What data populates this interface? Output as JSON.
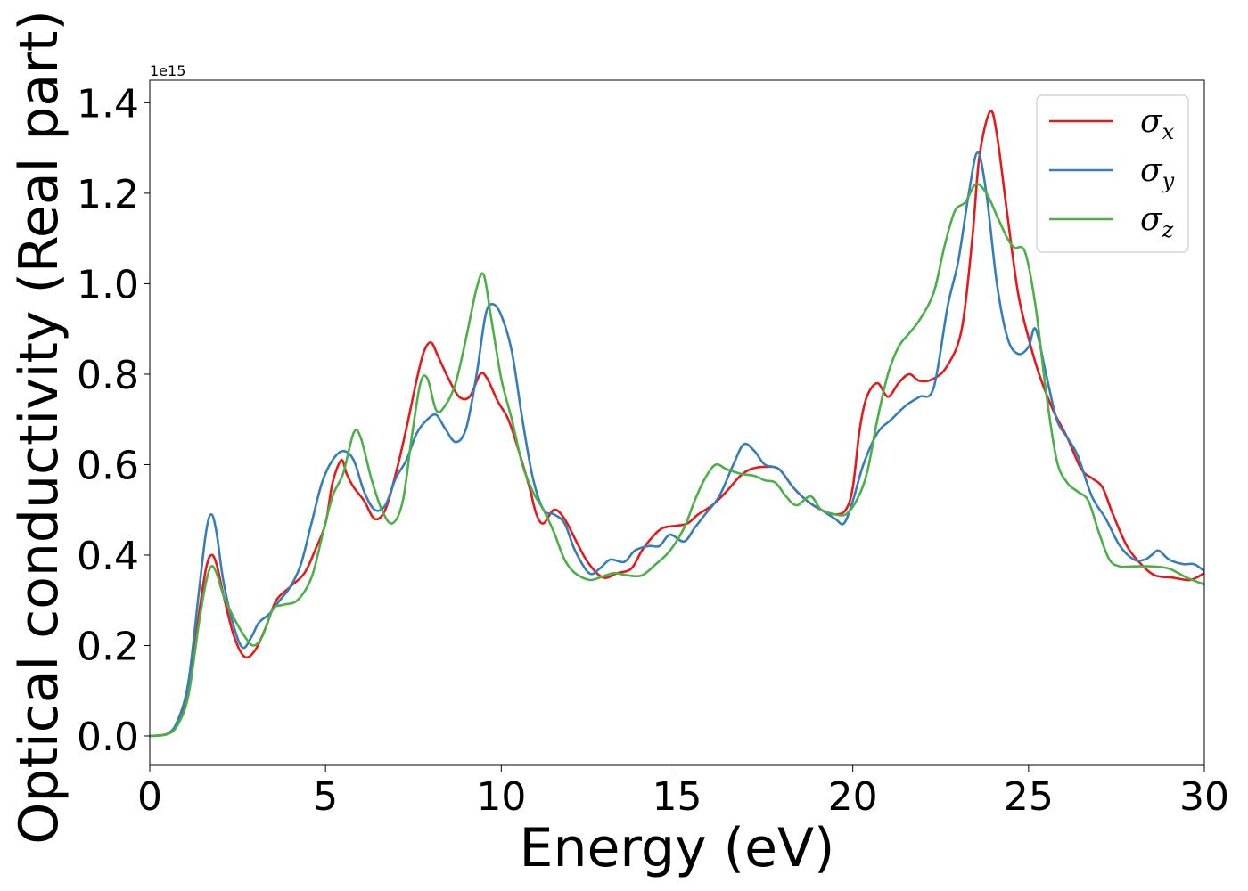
{
  "chart_data": {
    "type": "line",
    "title": "",
    "xlabel": "Energy (eV)",
    "ylabel": "Optical conductivity (Real part)",
    "y_offset_label": "1e15",
    "xlim": [
      0,
      30
    ],
    "ylim": [
      -0.065,
      1.45
    ],
    "x_ticks": [
      0,
      5,
      10,
      15,
      20,
      25,
      30
    ],
    "x_tick_labels": [
      "0",
      "5",
      "10",
      "15",
      "20",
      "25",
      "30"
    ],
    "y_ticks": [
      0.0,
      0.2,
      0.4,
      0.6,
      0.8,
      1.0,
      1.2,
      1.4
    ],
    "y_tick_labels": [
      "0.0",
      "0.2",
      "0.4",
      "0.6",
      "0.8",
      "1.0",
      "1.2",
      "1.4"
    ],
    "grid": false,
    "legend_position": "top-right",
    "series": [
      {
        "name": "σx",
        "symbol": "σ",
        "subscript": "x",
        "color": "#e41a1c",
        "points": [
          [
            0,
            0
          ],
          [
            0.5,
            0.005
          ],
          [
            0.8,
            0.03
          ],
          [
            1.1,
            0.1
          ],
          [
            1.4,
            0.27
          ],
          [
            1.6,
            0.37
          ],
          [
            1.75,
            0.4
          ],
          [
            1.9,
            0.38
          ],
          [
            2.1,
            0.31
          ],
          [
            2.4,
            0.22
          ],
          [
            2.7,
            0.175
          ],
          [
            3.0,
            0.19
          ],
          [
            3.3,
            0.24
          ],
          [
            3.6,
            0.3
          ],
          [
            4.0,
            0.33
          ],
          [
            4.4,
            0.36
          ],
          [
            4.7,
            0.41
          ],
          [
            5.0,
            0.47
          ],
          [
            5.2,
            0.56
          ],
          [
            5.45,
            0.61
          ],
          [
            5.6,
            0.58
          ],
          [
            5.8,
            0.55
          ],
          [
            6.1,
            0.52
          ],
          [
            6.4,
            0.48
          ],
          [
            6.7,
            0.5
          ],
          [
            7.0,
            0.58
          ],
          [
            7.3,
            0.68
          ],
          [
            7.6,
            0.79
          ],
          [
            7.8,
            0.85
          ],
          [
            8.0,
            0.87
          ],
          [
            8.2,
            0.84
          ],
          [
            8.5,
            0.79
          ],
          [
            8.8,
            0.75
          ],
          [
            9.1,
            0.75
          ],
          [
            9.4,
            0.8
          ],
          [
            9.6,
            0.79
          ],
          [
            9.9,
            0.74
          ],
          [
            10.2,
            0.7
          ],
          [
            10.5,
            0.63
          ],
          [
            10.8,
            0.55
          ],
          [
            11.0,
            0.49
          ],
          [
            11.2,
            0.47
          ],
          [
            11.5,
            0.5
          ],
          [
            11.8,
            0.48
          ],
          [
            12.2,
            0.42
          ],
          [
            12.5,
            0.38
          ],
          [
            12.9,
            0.35
          ],
          [
            13.3,
            0.36
          ],
          [
            13.7,
            0.37
          ],
          [
            14.0,
            0.41
          ],
          [
            14.3,
            0.44
          ],
          [
            14.6,
            0.46
          ],
          [
            15.0,
            0.465
          ],
          [
            15.3,
            0.47
          ],
          [
            15.6,
            0.49
          ],
          [
            16.0,
            0.51
          ],
          [
            16.4,
            0.54
          ],
          [
            16.8,
            0.575
          ],
          [
            17.1,
            0.59
          ],
          [
            17.5,
            0.595
          ],
          [
            17.9,
            0.59
          ],
          [
            18.3,
            0.55
          ],
          [
            18.7,
            0.52
          ],
          [
            19.1,
            0.5
          ],
          [
            19.5,
            0.49
          ],
          [
            19.8,
            0.5
          ],
          [
            20.0,
            0.55
          ],
          [
            20.2,
            0.68
          ],
          [
            20.4,
            0.75
          ],
          [
            20.7,
            0.78
          ],
          [
            21.0,
            0.75
          ],
          [
            21.3,
            0.78
          ],
          [
            21.6,
            0.8
          ],
          [
            21.9,
            0.785
          ],
          [
            22.3,
            0.79
          ],
          [
            22.7,
            0.82
          ],
          [
            23.1,
            0.9
          ],
          [
            23.4,
            1.1
          ],
          [
            23.6,
            1.28
          ],
          [
            23.9,
            1.38
          ],
          [
            24.1,
            1.33
          ],
          [
            24.4,
            1.15
          ],
          [
            24.7,
            0.98
          ],
          [
            25.0,
            0.88
          ],
          [
            25.3,
            0.8
          ],
          [
            25.7,
            0.72
          ],
          [
            26.1,
            0.66
          ],
          [
            26.5,
            0.59
          ],
          [
            26.8,
            0.57
          ],
          [
            27.1,
            0.55
          ],
          [
            27.4,
            0.49
          ],
          [
            27.8,
            0.42
          ],
          [
            28.2,
            0.38
          ],
          [
            28.6,
            0.355
          ],
          [
            29.1,
            0.35
          ],
          [
            29.6,
            0.345
          ],
          [
            30.0,
            0.36
          ]
        ]
      },
      {
        "name": "σy",
        "symbol": "σ",
        "subscript": "y",
        "color": "#377eb8",
        "points": [
          [
            0,
            0
          ],
          [
            0.5,
            0.005
          ],
          [
            0.8,
            0.035
          ],
          [
            1.1,
            0.12
          ],
          [
            1.4,
            0.32
          ],
          [
            1.6,
            0.45
          ],
          [
            1.75,
            0.49
          ],
          [
            1.9,
            0.45
          ],
          [
            2.1,
            0.34
          ],
          [
            2.4,
            0.24
          ],
          [
            2.65,
            0.195
          ],
          [
            2.9,
            0.22
          ],
          [
            3.1,
            0.25
          ],
          [
            3.4,
            0.27
          ],
          [
            3.7,
            0.3
          ],
          [
            4.0,
            0.33
          ],
          [
            4.3,
            0.38
          ],
          [
            4.6,
            0.47
          ],
          [
            4.9,
            0.56
          ],
          [
            5.2,
            0.61
          ],
          [
            5.5,
            0.63
          ],
          [
            5.8,
            0.61
          ],
          [
            6.1,
            0.54
          ],
          [
            6.4,
            0.5
          ],
          [
            6.7,
            0.51
          ],
          [
            7.0,
            0.57
          ],
          [
            7.3,
            0.61
          ],
          [
            7.6,
            0.67
          ],
          [
            7.9,
            0.7
          ],
          [
            8.15,
            0.71
          ],
          [
            8.4,
            0.68
          ],
          [
            8.7,
            0.65
          ],
          [
            9.0,
            0.68
          ],
          [
            9.3,
            0.8
          ],
          [
            9.55,
            0.93
          ],
          [
            9.75,
            0.955
          ],
          [
            10.0,
            0.93
          ],
          [
            10.3,
            0.85
          ],
          [
            10.6,
            0.7
          ],
          [
            10.9,
            0.57
          ],
          [
            11.2,
            0.5
          ],
          [
            11.5,
            0.49
          ],
          [
            11.8,
            0.47
          ],
          [
            12.1,
            0.41
          ],
          [
            12.5,
            0.36
          ],
          [
            12.8,
            0.37
          ],
          [
            13.1,
            0.39
          ],
          [
            13.5,
            0.385
          ],
          [
            13.8,
            0.41
          ],
          [
            14.2,
            0.42
          ],
          [
            14.5,
            0.42
          ],
          [
            14.8,
            0.445
          ],
          [
            15.2,
            0.43
          ],
          [
            15.5,
            0.46
          ],
          [
            15.8,
            0.49
          ],
          [
            16.2,
            0.53
          ],
          [
            16.6,
            0.6
          ],
          [
            16.9,
            0.645
          ],
          [
            17.2,
            0.63
          ],
          [
            17.5,
            0.6
          ],
          [
            17.9,
            0.59
          ],
          [
            18.3,
            0.55
          ],
          [
            18.7,
            0.52
          ],
          [
            19.1,
            0.5
          ],
          [
            19.5,
            0.48
          ],
          [
            19.75,
            0.47
          ],
          [
            20.0,
            0.52
          ],
          [
            20.3,
            0.6
          ],
          [
            20.7,
            0.67
          ],
          [
            21.1,
            0.7
          ],
          [
            21.5,
            0.73
          ],
          [
            21.9,
            0.75
          ],
          [
            22.3,
            0.77
          ],
          [
            22.7,
            0.95
          ],
          [
            23.0,
            1.05
          ],
          [
            23.3,
            1.2
          ],
          [
            23.55,
            1.29
          ],
          [
            23.8,
            1.2
          ],
          [
            24.1,
            1.0
          ],
          [
            24.4,
            0.88
          ],
          [
            24.7,
            0.845
          ],
          [
            25.0,
            0.86
          ],
          [
            25.2,
            0.9
          ],
          [
            25.5,
            0.8
          ],
          [
            25.8,
            0.7
          ],
          [
            26.1,
            0.66
          ],
          [
            26.4,
            0.62
          ],
          [
            26.8,
            0.53
          ],
          [
            27.2,
            0.48
          ],
          [
            27.6,
            0.42
          ],
          [
            28.0,
            0.39
          ],
          [
            28.3,
            0.39
          ],
          [
            28.5,
            0.4
          ],
          [
            28.7,
            0.41
          ],
          [
            29.0,
            0.39
          ],
          [
            29.4,
            0.38
          ],
          [
            29.7,
            0.38
          ],
          [
            30.0,
            0.365
          ]
        ]
      },
      {
        "name": "σz",
        "symbol": "σ",
        "subscript": "z",
        "color": "#4daf4a",
        "points": [
          [
            0,
            0
          ],
          [
            0.5,
            0.004
          ],
          [
            0.8,
            0.025
          ],
          [
            1.1,
            0.09
          ],
          [
            1.4,
            0.25
          ],
          [
            1.6,
            0.34
          ],
          [
            1.75,
            0.375
          ],
          [
            1.9,
            0.36
          ],
          [
            2.1,
            0.31
          ],
          [
            2.4,
            0.26
          ],
          [
            2.7,
            0.22
          ],
          [
            2.95,
            0.2
          ],
          [
            3.2,
            0.22
          ],
          [
            3.5,
            0.28
          ],
          [
            3.8,
            0.29
          ],
          [
            4.2,
            0.3
          ],
          [
            4.6,
            0.35
          ],
          [
            4.9,
            0.44
          ],
          [
            5.2,
            0.53
          ],
          [
            5.5,
            0.58
          ],
          [
            5.8,
            0.67
          ],
          [
            6.0,
            0.66
          ],
          [
            6.3,
            0.57
          ],
          [
            6.6,
            0.5
          ],
          [
            6.9,
            0.47
          ],
          [
            7.2,
            0.52
          ],
          [
            7.45,
            0.66
          ],
          [
            7.7,
            0.78
          ],
          [
            7.9,
            0.79
          ],
          [
            8.15,
            0.72
          ],
          [
            8.4,
            0.73
          ],
          [
            8.7,
            0.78
          ],
          [
            9.0,
            0.88
          ],
          [
            9.3,
            0.99
          ],
          [
            9.5,
            1.02
          ],
          [
            9.7,
            0.93
          ],
          [
            10.0,
            0.79
          ],
          [
            10.3,
            0.7
          ],
          [
            10.6,
            0.6
          ],
          [
            10.9,
            0.54
          ],
          [
            11.2,
            0.5
          ],
          [
            11.5,
            0.45
          ],
          [
            11.8,
            0.39
          ],
          [
            12.1,
            0.36
          ],
          [
            12.5,
            0.345
          ],
          [
            12.8,
            0.35
          ],
          [
            13.2,
            0.36
          ],
          [
            13.6,
            0.355
          ],
          [
            14.0,
            0.355
          ],
          [
            14.4,
            0.38
          ],
          [
            14.8,
            0.41
          ],
          [
            15.2,
            0.46
          ],
          [
            15.5,
            0.52
          ],
          [
            15.8,
            0.57
          ],
          [
            16.1,
            0.6
          ],
          [
            16.4,
            0.59
          ],
          [
            16.8,
            0.58
          ],
          [
            17.2,
            0.575
          ],
          [
            17.5,
            0.565
          ],
          [
            17.8,
            0.56
          ],
          [
            18.1,
            0.53
          ],
          [
            18.4,
            0.51
          ],
          [
            18.8,
            0.53
          ],
          [
            19.1,
            0.5
          ],
          [
            19.5,
            0.49
          ],
          [
            19.8,
            0.49
          ],
          [
            20.1,
            0.52
          ],
          [
            20.4,
            0.58
          ],
          [
            20.7,
            0.7
          ],
          [
            21.0,
            0.8
          ],
          [
            21.3,
            0.86
          ],
          [
            21.6,
            0.89
          ],
          [
            21.9,
            0.92
          ],
          [
            22.3,
            0.98
          ],
          [
            22.6,
            1.08
          ],
          [
            22.9,
            1.16
          ],
          [
            23.2,
            1.18
          ],
          [
            23.5,
            1.22
          ],
          [
            23.8,
            1.2
          ],
          [
            24.1,
            1.15
          ],
          [
            24.4,
            1.1
          ],
          [
            24.6,
            1.08
          ],
          [
            24.9,
            1.07
          ],
          [
            25.2,
            0.95
          ],
          [
            25.5,
            0.76
          ],
          [
            25.8,
            0.61
          ],
          [
            26.1,
            0.56
          ],
          [
            26.4,
            0.54
          ],
          [
            26.7,
            0.52
          ],
          [
            27.0,
            0.45
          ],
          [
            27.3,
            0.39
          ],
          [
            27.6,
            0.375
          ],
          [
            28.0,
            0.375
          ],
          [
            28.5,
            0.375
          ],
          [
            29.0,
            0.37
          ],
          [
            29.5,
            0.35
          ],
          [
            30.0,
            0.335
          ]
        ]
      }
    ]
  }
}
